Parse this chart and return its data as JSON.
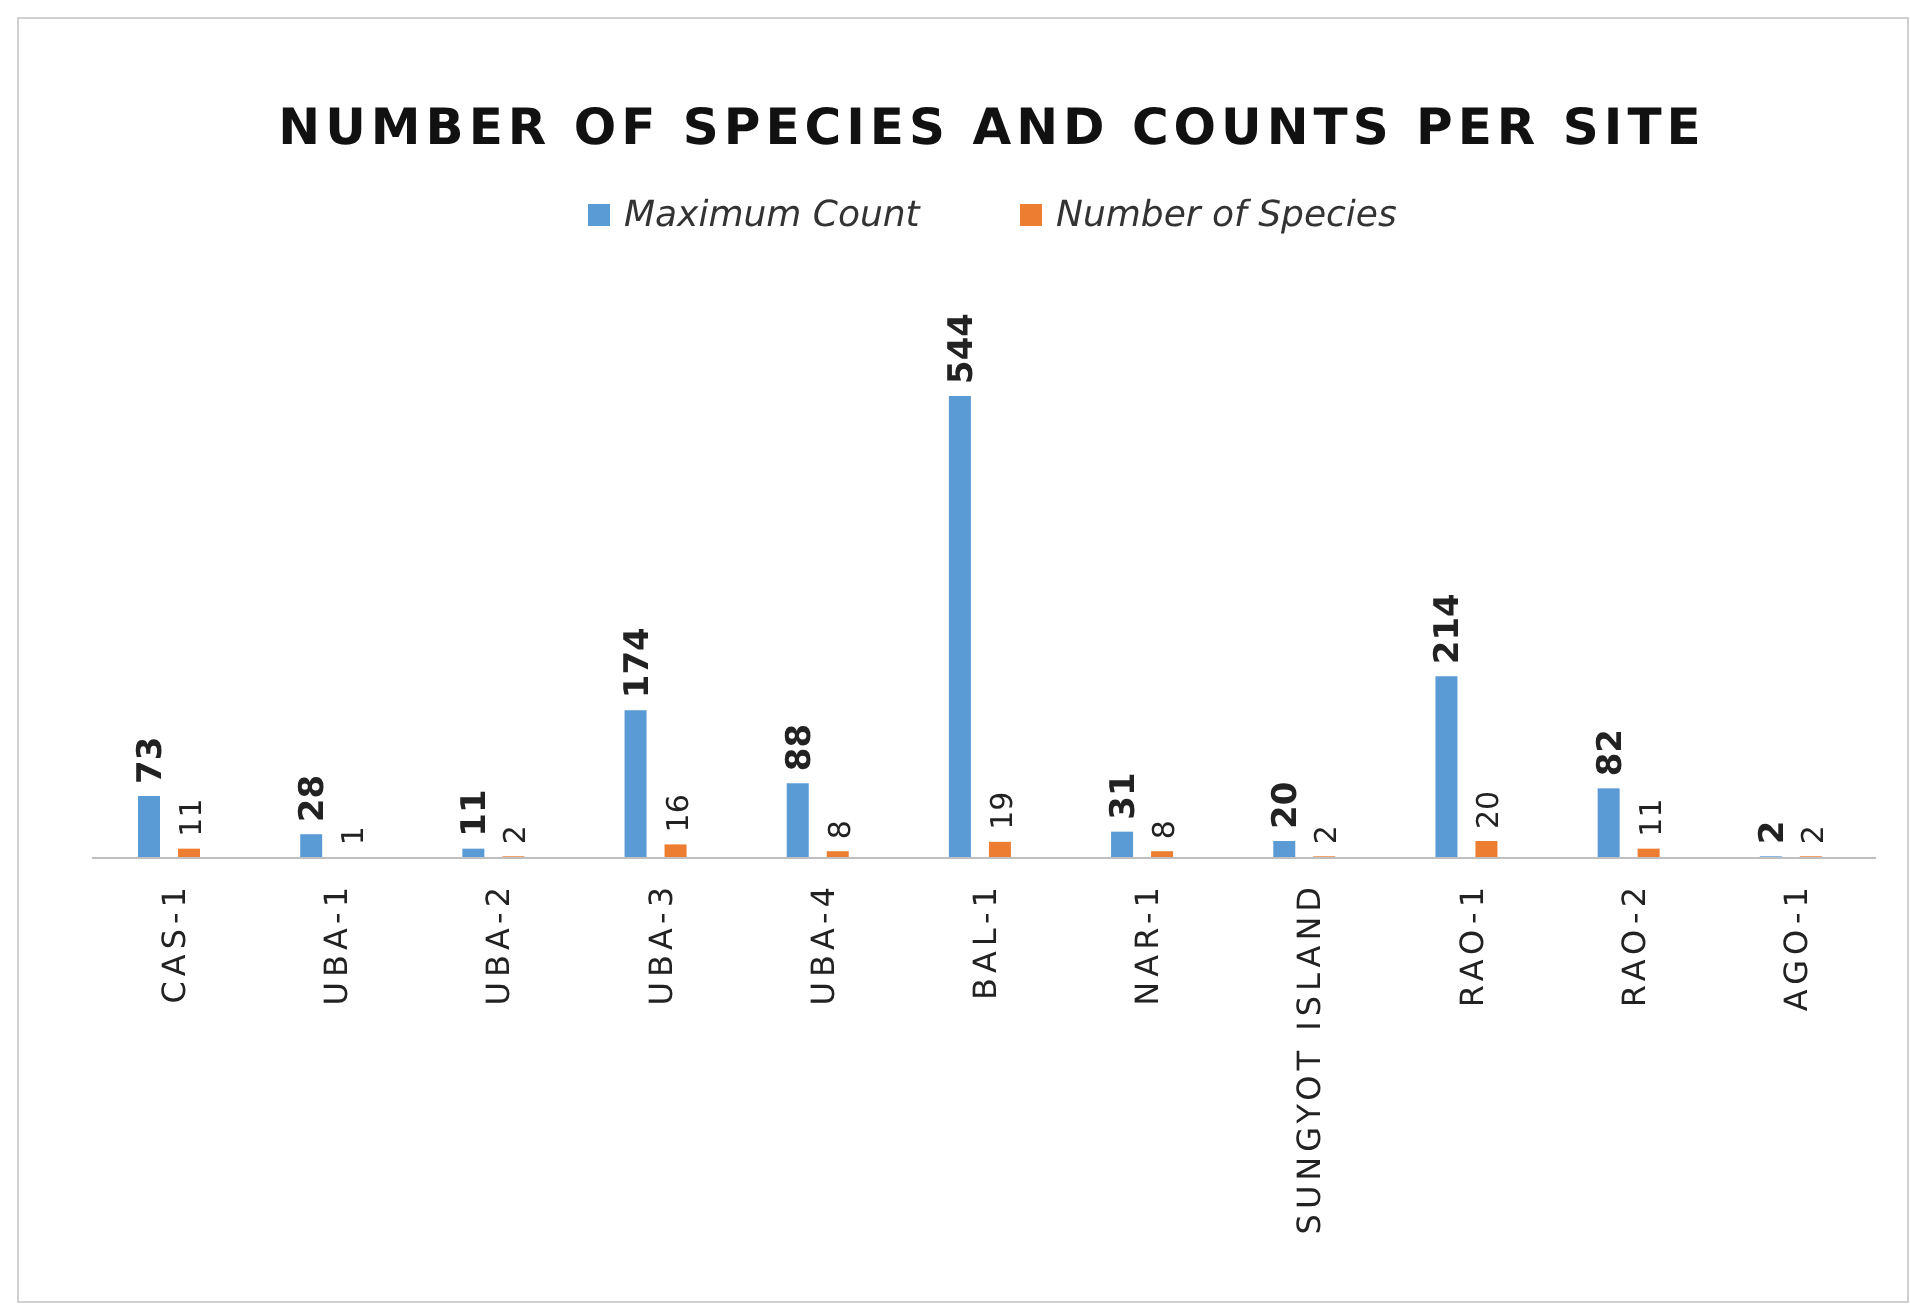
{
  "chart_data": {
    "type": "bar",
    "title": "NUMBER OF SPECIES AND COUNTS PER SITE",
    "categories": [
      "CAS-1",
      "UBA-1",
      "UBA-2",
      "UBA-3",
      "UBA-4",
      "BAL-1",
      "NAR-1",
      "SUNGYOT ISLAND",
      "RAO-1",
      "RAO-2",
      "AGO-1"
    ],
    "series": [
      {
        "name": "Maximum Count",
        "color": "#5b9bd5",
        "values": [
          73,
          28,
          11,
          174,
          88,
          544,
          31,
          20,
          214,
          82,
          2
        ]
      },
      {
        "name": "Number of Species",
        "color": "#ed7d31",
        "values": [
          11,
          1,
          2,
          16,
          8,
          19,
          8,
          2,
          20,
          11,
          2
        ]
      }
    ],
    "data_labels": true,
    "legend": "top"
  }
}
